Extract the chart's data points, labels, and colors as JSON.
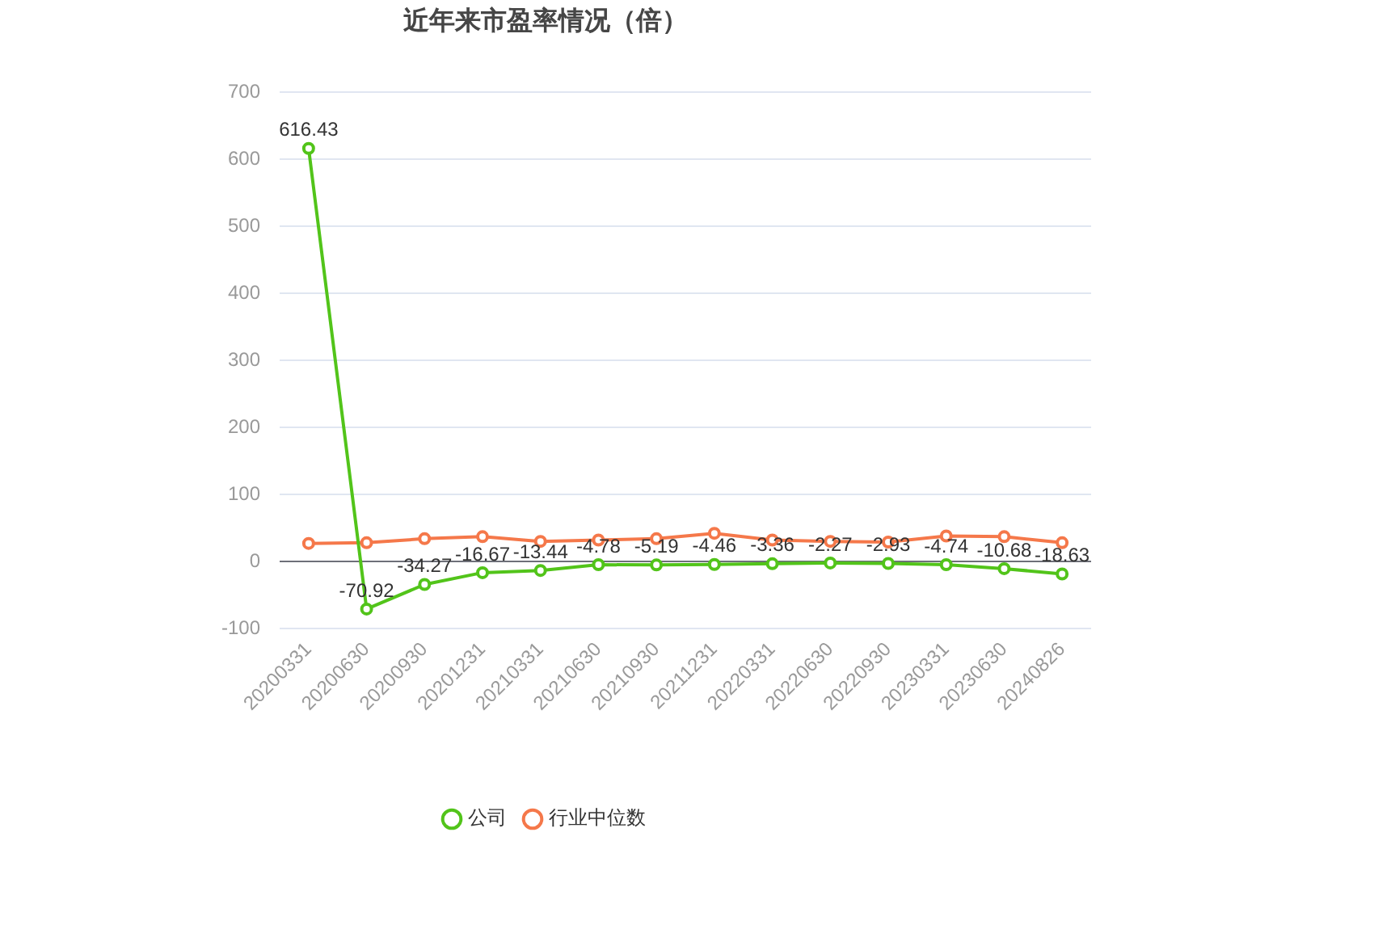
{
  "chart_data": {
    "type": "line",
    "title": "近年来市盈率情况（倍）",
    "categories": [
      "20200331",
      "20200630",
      "20200930",
      "20201231",
      "20210331",
      "20210630",
      "20210930",
      "20211231",
      "20220331",
      "20220630",
      "20220930",
      "20230331",
      "20230630",
      "20240826"
    ],
    "series": [
      {
        "name": "公司",
        "color": "#52c41a",
        "values": [
          616.43,
          -70.92,
          -34.27,
          -16.67,
          -13.44,
          -4.78,
          -5.19,
          -4.46,
          -3.36,
          -2.27,
          -2.93,
          -4.74,
          -10.68,
          -18.63
        ],
        "value_labels": [
          "616.43",
          "-70.92",
          "-34.27",
          "-16.67",
          "-13.44",
          "-4.78",
          "-5.19",
          "-4.46",
          "-3.36",
          "-2.27",
          "-2.93",
          "-4.74",
          "-10.68",
          "-18.63"
        ]
      },
      {
        "name": "行业中位数",
        "color": "#f5784a",
        "values": [
          27,
          28,
          34,
          37,
          30,
          32,
          34,
          42,
          32,
          30,
          29,
          38,
          37,
          28
        ]
      }
    ],
    "ylim": [
      -100,
      700
    ],
    "yticks": [
      -100,
      0,
      100,
      200,
      300,
      400,
      500,
      600,
      700
    ],
    "grid": "y",
    "legend": "bottom",
    "marker": "circle"
  }
}
